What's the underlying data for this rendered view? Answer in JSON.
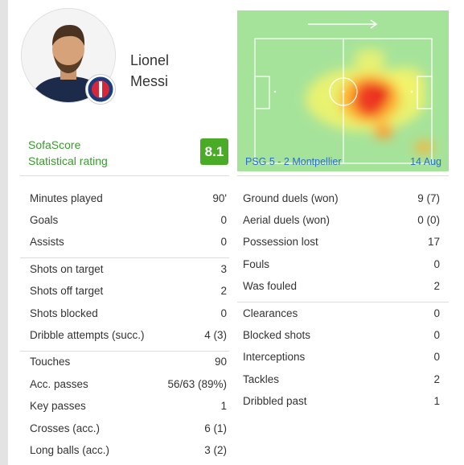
{
  "player": {
    "first_name": "Lionel",
    "last_name": "Messi"
  },
  "rating": {
    "line1": "SofaScore",
    "line2": "Statistical rating",
    "value": "8.1"
  },
  "match": {
    "score_text": "PSG 5 - 2 Montpellier",
    "date": "14 Aug"
  },
  "heatmap_direction_icon": "arrow-right-icon",
  "colors": {
    "rating_green": "#4aab26",
    "label_green": "#3a9a2e",
    "pitch": "#a6e39a",
    "link_blue": "#2a6fc2"
  },
  "left_groups": [
    [
      {
        "label": "Minutes played",
        "value": "90'"
      },
      {
        "label": "Goals",
        "value": "0"
      },
      {
        "label": "Assists",
        "value": "0"
      }
    ],
    [
      {
        "label": "Shots on target",
        "value": "3"
      },
      {
        "label": "Shots off target",
        "value": "2"
      },
      {
        "label": "Shots blocked",
        "value": "0"
      },
      {
        "label": "Dribble attempts (succ.)",
        "value": "4 (3)"
      }
    ],
    [
      {
        "label": "Touches",
        "value": "90"
      },
      {
        "label": "Acc. passes",
        "value": "56/63 (89%)"
      },
      {
        "label": "Key passes",
        "value": "1"
      },
      {
        "label": "Crosses (acc.)",
        "value": "6 (1)"
      },
      {
        "label": "Long balls (acc.)",
        "value": "3 (2)"
      }
    ]
  ],
  "right_groups": [
    [
      {
        "label": "Ground duels (won)",
        "value": "9 (7)"
      },
      {
        "label": "Aerial duels (won)",
        "value": "0 (0)"
      },
      {
        "label": "Possession lost",
        "value": "17"
      },
      {
        "label": "Fouls",
        "value": "0"
      },
      {
        "label": "Was fouled",
        "value": "2"
      }
    ],
    [
      {
        "label": "Clearances",
        "value": "0"
      },
      {
        "label": "Blocked shots",
        "value": "0"
      },
      {
        "label": "Interceptions",
        "value": "0"
      },
      {
        "label": "Tackles",
        "value": "2"
      },
      {
        "label": "Dribbled past",
        "value": "1"
      }
    ]
  ]
}
